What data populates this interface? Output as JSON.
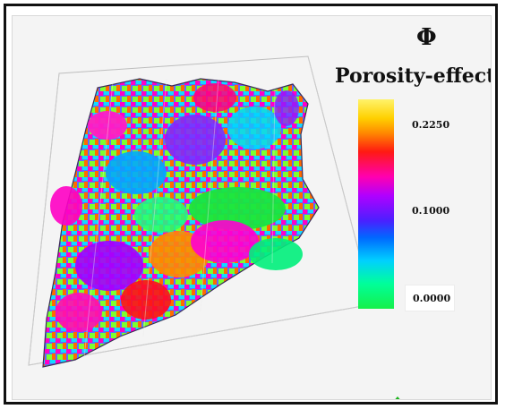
{
  "legend": {
    "symbol": "Φ",
    "title": "Porosity-effective",
    "ticks": {
      "max": "0.2250",
      "mid": "0.1000",
      "min": "0.0000"
    }
  },
  "colors": {
    "frame": "#111111",
    "background": "#f4f4f4",
    "arrow": "#19b31a"
  },
  "icons": {
    "arrow": "up-arrow-icon"
  }
}
